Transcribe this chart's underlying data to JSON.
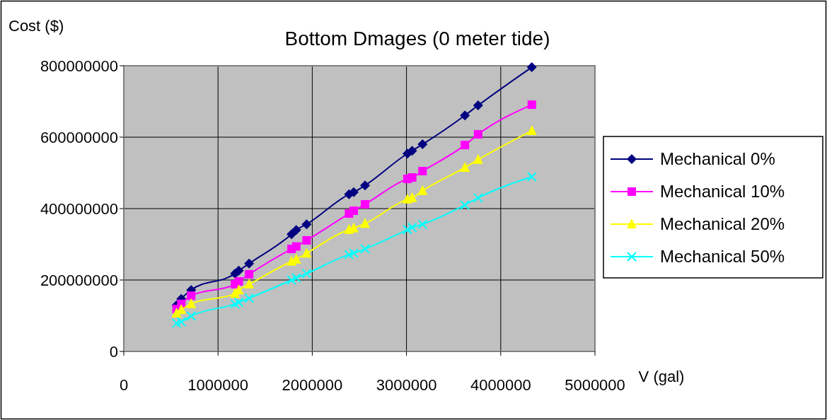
{
  "chart_data": {
    "type": "line",
    "title": "Bottom Dmages (0 meter tide)",
    "xlabel": "V (gal)",
    "ylabel": "Cost ($)",
    "x": [
      560000,
      610000,
      715000,
      1180000,
      1220000,
      1330000,
      1780000,
      1830000,
      1940000,
      2390000,
      2440000,
      2560000,
      3010000,
      3060000,
      3170000,
      3620000,
      3760000,
      4330000
    ],
    "series": [
      {
        "name": "Mechanical 0%",
        "color": "#000080",
        "marker": "diamond",
        "values": [
          129000000,
          147000000,
          172000000,
          218000000,
          226000000,
          246000000,
          328000000,
          340000000,
          356000000,
          440000000,
          446000000,
          465000000,
          554000000,
          562000000,
          580000000,
          661000000,
          689000000,
          796000000
        ]
      },
      {
        "name": "Mechanical 10%",
        "color": "#ff00ff",
        "marker": "square",
        "values": [
          119000000,
          133000000,
          156000000,
          188000000,
          196000000,
          216000000,
          287000000,
          294000000,
          311000000,
          386000000,
          394000000,
          412000000,
          483000000,
          487000000,
          505000000,
          578000000,
          608000000,
          691000000
        ]
      },
      {
        "name": "Mechanical 20%",
        "color": "#ffff00",
        "marker": "triangle",
        "values": [
          107000000,
          117000000,
          133000000,
          162000000,
          172000000,
          188000000,
          252000000,
          258000000,
          275000000,
          341000000,
          345000000,
          358000000,
          426000000,
          430000000,
          450000000,
          515000000,
          537000000,
          618000000
        ]
      },
      {
        "name": "Mechanical 50%",
        "color": "#00ffff",
        "marker": "cross",
        "values": [
          79000000,
          83000000,
          99000000,
          133000000,
          137000000,
          149000000,
          200000000,
          206000000,
          218000000,
          271000000,
          275000000,
          287000000,
          341000000,
          347000000,
          356000000,
          410000000,
          430000000,
          489000000
        ]
      }
    ],
    "xlim": [
      0,
      5000000
    ],
    "xticks": [
      0,
      1000000,
      2000000,
      3000000,
      4000000,
      5000000
    ],
    "ylim": [
      0,
      800000000
    ],
    "yticks": [
      0,
      200000000,
      400000000,
      600000000,
      800000000
    ],
    "grid": true,
    "legend": "right"
  }
}
